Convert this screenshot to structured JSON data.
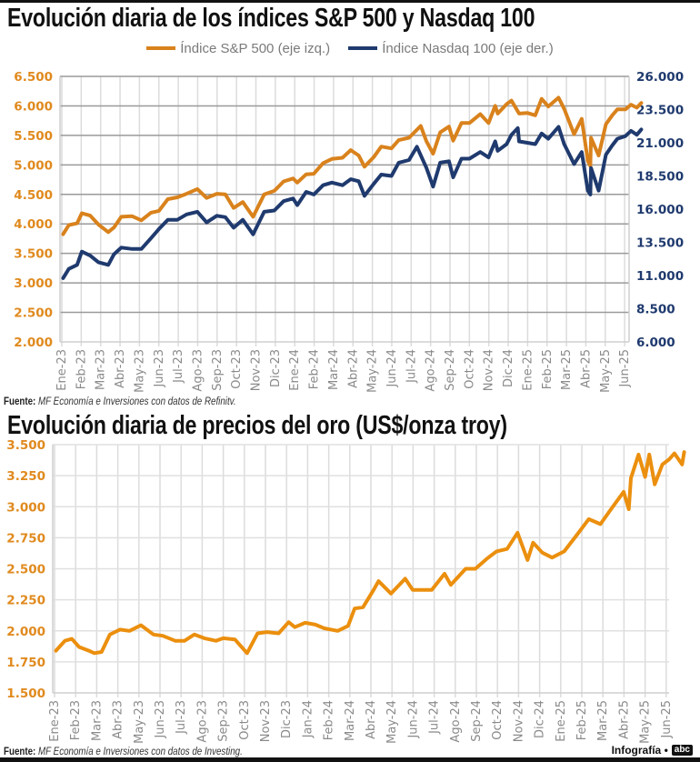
{
  "chart_data": [
    {
      "type": "line",
      "title": "Evolución diaria de los índices S&P 500 y Nasdaq 100",
      "legend_placement": "top-center",
      "grid": true,
      "y_left": {
        "range": [
          2000,
          6500
        ],
        "ticks": [
          "2.000",
          "2.500",
          "3.000",
          "3.500",
          "4.000",
          "4.500",
          "5.000",
          "5.500",
          "6.000",
          "6.500"
        ],
        "color": "#E08A1E"
      },
      "y_right": {
        "range": [
          6000,
          26000
        ],
        "ticks": [
          "6.000",
          "8.500",
          "11.000",
          "13.500",
          "16.000",
          "18.500",
          "21.000",
          "23.500",
          "26.000"
        ],
        "color": "#1F3A6E"
      },
      "x_ticks": [
        "Ene-23",
        "Feb-23",
        "Mar-23",
        "Abr-23",
        "May-23",
        "Jun-23",
        "Jul-23",
        "Ago-23",
        "Sep-23",
        "Oct-23",
        "Nov-23",
        "Dic-23",
        "Ene-24",
        "Feb-24",
        "Mar-24",
        "Abr-24",
        "May-24",
        "Jun-24",
        "Jul-24",
        "Ago-24",
        "Sep-24",
        "Oct-24",
        "Nov-24",
        "Dic-24",
        "Ene-25",
        "Feb-25",
        "Mar-25",
        "Abr-25",
        "May-25",
        "Jun-25"
      ],
      "series": [
        {
          "name": "Índice S&P 500 (eje izq.)",
          "axis": "left",
          "color": "#D9821C",
          "points": [
            [
              "2023-01-03",
              3825
            ],
            [
              "2023-01-12",
              3980
            ],
            [
              "2023-01-25",
              4010
            ],
            [
              "2023-02-02",
              4180
            ],
            [
              "2023-02-15",
              4140
            ],
            [
              "2023-02-28",
              3990
            ],
            [
              "2023-03-13",
              3860
            ],
            [
              "2023-03-22",
              3940
            ],
            [
              "2023-04-03",
              4120
            ],
            [
              "2023-04-20",
              4130
            ],
            [
              "2023-05-04",
              4060
            ],
            [
              "2023-05-19",
              4190
            ],
            [
              "2023-06-01",
              4220
            ],
            [
              "2023-06-15",
              4420
            ],
            [
              "2023-06-30",
              4450
            ],
            [
              "2023-07-14",
              4510
            ],
            [
              "2023-07-31",
              4590
            ],
            [
              "2023-08-15",
              4440
            ],
            [
              "2023-08-31",
              4510
            ],
            [
              "2023-09-14",
              4500
            ],
            [
              "2023-09-27",
              4270
            ],
            [
              "2023-10-11",
              4370
            ],
            [
              "2023-10-27",
              4120
            ],
            [
              "2023-11-14",
              4500
            ],
            [
              "2023-11-30",
              4560
            ],
            [
              "2023-12-14",
              4720
            ],
            [
              "2023-12-29",
              4770
            ],
            [
              "2024-01-05",
              4700
            ],
            [
              "2024-01-19",
              4840
            ],
            [
              "2024-01-31",
              4850
            ],
            [
              "2024-02-15",
              5030
            ],
            [
              "2024-02-29",
              5100
            ],
            [
              "2024-03-15",
              5120
            ],
            [
              "2024-03-28",
              5250
            ],
            [
              "2024-04-10",
              5160
            ],
            [
              "2024-04-19",
              4970
            ],
            [
              "2024-05-03",
              5130
            ],
            [
              "2024-05-15",
              5310
            ],
            [
              "2024-05-31",
              5280
            ],
            [
              "2024-06-12",
              5420
            ],
            [
              "2024-06-28",
              5460
            ],
            [
              "2024-07-16",
              5660
            ],
            [
              "2024-07-25",
              5400
            ],
            [
              "2024-08-05",
              5190
            ],
            [
              "2024-08-16",
              5550
            ],
            [
              "2024-08-30",
              5650
            ],
            [
              "2024-09-06",
              5410
            ],
            [
              "2024-09-19",
              5710
            ],
            [
              "2024-10-01",
              5710
            ],
            [
              "2024-10-18",
              5860
            ],
            [
              "2024-10-31",
              5710
            ],
            [
              "2024-11-11",
              6000
            ],
            [
              "2024-11-15",
              5870
            ],
            [
              "2024-11-29",
              6030
            ],
            [
              "2024-12-06",
              6090
            ],
            [
              "2024-12-18",
              5870
            ],
            [
              "2024-12-31",
              5880
            ],
            [
              "2025-01-13",
              5840
            ],
            [
              "2025-01-23",
              6120
            ],
            [
              "2025-02-03",
              5990
            ],
            [
              "2025-02-19",
              6140
            ],
            [
              "2025-02-28",
              5950
            ],
            [
              "2025-03-13",
              5520
            ],
            [
              "2025-03-25",
              5780
            ],
            [
              "2025-04-04",
              5070
            ],
            [
              "2025-04-08",
              4980
            ],
            [
              "2025-04-09",
              5460
            ],
            [
              "2025-04-21",
              5160
            ],
            [
              "2025-05-02",
              5690
            ],
            [
              "2025-05-12",
              5840
            ],
            [
              "2025-05-20",
              5940
            ],
            [
              "2025-06-02",
              5940
            ],
            [
              "2025-06-11",
              6020
            ],
            [
              "2025-06-20",
              5970
            ],
            [
              "2025-06-27",
              6050
            ]
          ]
        },
        {
          "name": "Índice Nasdaq 100 (eje der.)",
          "axis": "right",
          "color": "#1F3A6E",
          "points": [
            [
              "2023-01-03",
              10800
            ],
            [
              "2023-01-12",
              11500
            ],
            [
              "2023-01-25",
              11800
            ],
            [
              "2023-02-02",
              12800
            ],
            [
              "2023-02-15",
              12500
            ],
            [
              "2023-02-28",
              12000
            ],
            [
              "2023-03-13",
              11800
            ],
            [
              "2023-03-22",
              12600
            ],
            [
              "2023-04-03",
              13100
            ],
            [
              "2023-04-20",
              13000
            ],
            [
              "2023-05-04",
              13000
            ],
            [
              "2023-05-19",
              13800
            ],
            [
              "2023-06-01",
              14500
            ],
            [
              "2023-06-15",
              15200
            ],
            [
              "2023-06-30",
              15200
            ],
            [
              "2023-07-14",
              15600
            ],
            [
              "2023-07-31",
              15800
            ],
            [
              "2023-08-15",
              15000
            ],
            [
              "2023-08-31",
              15500
            ],
            [
              "2023-09-14",
              15400
            ],
            [
              "2023-09-27",
              14600
            ],
            [
              "2023-10-11",
              15200
            ],
            [
              "2023-10-27",
              14100
            ],
            [
              "2023-11-14",
              15800
            ],
            [
              "2023-11-30",
              15900
            ],
            [
              "2023-12-14",
              16600
            ],
            [
              "2023-12-29",
              16800
            ],
            [
              "2024-01-05",
              16300
            ],
            [
              "2024-01-19",
              17300
            ],
            [
              "2024-01-31",
              17100
            ],
            [
              "2024-02-15",
              17800
            ],
            [
              "2024-02-29",
              18000
            ],
            [
              "2024-03-15",
              17800
            ],
            [
              "2024-03-28",
              18250
            ],
            [
              "2024-04-10",
              18100
            ],
            [
              "2024-04-19",
              17000
            ],
            [
              "2024-05-03",
              17900
            ],
            [
              "2024-05-15",
              18600
            ],
            [
              "2024-05-31",
              18500
            ],
            [
              "2024-06-12",
              19500
            ],
            [
              "2024-06-28",
              19700
            ],
            [
              "2024-07-10",
              20700
            ],
            [
              "2024-07-25",
              19100
            ],
            [
              "2024-08-05",
              17700
            ],
            [
              "2024-08-16",
              19500
            ],
            [
              "2024-08-30",
              19600
            ],
            [
              "2024-09-06",
              18400
            ],
            [
              "2024-09-19",
              19800
            ],
            [
              "2024-10-01",
              19800
            ],
            [
              "2024-10-18",
              20300
            ],
            [
              "2024-10-31",
              19900
            ],
            [
              "2024-11-11",
              21100
            ],
            [
              "2024-11-15",
              20400
            ],
            [
              "2024-11-29",
              20900
            ],
            [
              "2024-12-06",
              21600
            ],
            [
              "2024-12-16",
              22100
            ],
            [
              "2024-12-18",
              21100
            ],
            [
              "2024-12-31",
              21000
            ],
            [
              "2025-01-13",
              20900
            ],
            [
              "2025-01-23",
              21700
            ],
            [
              "2025-02-03",
              21300
            ],
            [
              "2025-02-19",
              22200
            ],
            [
              "2025-02-28",
              20900
            ],
            [
              "2025-03-13",
              19400
            ],
            [
              "2025-03-25",
              20300
            ],
            [
              "2025-04-04",
              17400
            ],
            [
              "2025-04-08",
              17100
            ],
            [
              "2025-04-09",
              19100
            ],
            [
              "2025-04-21",
              17400
            ],
            [
              "2025-05-02",
              20100
            ],
            [
              "2025-05-12",
              20800
            ],
            [
              "2025-05-20",
              21300
            ],
            [
              "2025-06-02",
              21500
            ],
            [
              "2025-06-11",
              21900
            ],
            [
              "2025-06-20",
              21600
            ],
            [
              "2025-06-27",
              22000
            ]
          ]
        }
      ],
      "source_label": "Fuente:",
      "source_text": "MF Economía e Inversiones con datos de Refinitv."
    },
    {
      "type": "line",
      "title": "Evolución diaria de precios del oro (US$/onza troy)",
      "grid": true,
      "y_left": {
        "range": [
          1500,
          3500
        ],
        "ticks": [
          "1.500",
          "1.750",
          "2.000",
          "2.250",
          "2.500",
          "2.750",
          "3.000",
          "3.250",
          "3.500"
        ],
        "color": "#E08A1E"
      },
      "x_ticks": [
        "Ene-23",
        "Feb-23",
        "Mar-23",
        "Abr-23",
        "May-23",
        "Jun-23",
        "Jul-23",
        "Ago-23",
        "Sep-23",
        "Oct-23",
        "Nov-23",
        "Dic-23",
        "Jan-24",
        "Feb-24",
        "Mar-24",
        "Abr-24",
        "May-24",
        "Jun-24",
        "Jul-24",
        "Ago-24",
        "Sep-24",
        "Oct-24",
        "Nov-24",
        "Dic-24",
        "Ene-25",
        "Feb-25",
        "Mar-25",
        "Abr-25",
        "May-25",
        "Jun-25"
      ],
      "series": [
        {
          "axis": "left",
          "color": "#EB8F0E",
          "points": [
            [
              "2023-01-03",
              1840
            ],
            [
              "2023-01-16",
              1920
            ],
            [
              "2023-01-26",
              1935
            ],
            [
              "2023-02-06",
              1870
            ],
            [
              "2023-02-20",
              1840
            ],
            [
              "2023-02-28",
              1820
            ],
            [
              "2023-03-08",
              1830
            ],
            [
              "2023-03-20",
              1970
            ],
            [
              "2023-04-04",
              2010
            ],
            [
              "2023-04-18",
              2000
            ],
            [
              "2023-05-04",
              2045
            ],
            [
              "2023-05-22",
              1970
            ],
            [
              "2023-06-05",
              1960
            ],
            [
              "2023-06-23",
              1920
            ],
            [
              "2023-07-06",
              1920
            ],
            [
              "2023-07-20",
              1970
            ],
            [
              "2023-08-04",
              1940
            ],
            [
              "2023-08-21",
              1920
            ],
            [
              "2023-09-01",
              1940
            ],
            [
              "2023-09-18",
              1930
            ],
            [
              "2023-10-05",
              1820
            ],
            [
              "2023-10-20",
              1980
            ],
            [
              "2023-11-03",
              1990
            ],
            [
              "2023-11-20",
              1980
            ],
            [
              "2023-12-04",
              2070
            ],
            [
              "2023-12-13",
              2030
            ],
            [
              "2023-12-28",
              2065
            ],
            [
              "2024-01-12",
              2050
            ],
            [
              "2024-01-25",
              2020
            ],
            [
              "2024-02-14",
              2000
            ],
            [
              "2024-02-29",
              2040
            ],
            [
              "2024-03-08",
              2180
            ],
            [
              "2024-03-20",
              2190
            ],
            [
              "2024-04-05",
              2330
            ],
            [
              "2024-04-12",
              2400
            ],
            [
              "2024-04-30",
              2300
            ],
            [
              "2024-05-20",
              2420
            ],
            [
              "2024-05-31",
              2330
            ],
            [
              "2024-06-14",
              2330
            ],
            [
              "2024-06-28",
              2330
            ],
            [
              "2024-07-16",
              2460
            ],
            [
              "2024-07-25",
              2370
            ],
            [
              "2024-08-16",
              2500
            ],
            [
              "2024-08-30",
              2500
            ],
            [
              "2024-09-16",
              2580
            ],
            [
              "2024-09-30",
              2640
            ],
            [
              "2024-10-15",
              2660
            ],
            [
              "2024-10-30",
              2790
            ],
            [
              "2024-11-14",
              2570
            ],
            [
              "2024-11-22",
              2710
            ],
            [
              "2024-12-05",
              2630
            ],
            [
              "2024-12-19",
              2590
            ],
            [
              "2025-01-06",
              2640
            ],
            [
              "2025-01-24",
              2770
            ],
            [
              "2025-02-11",
              2900
            ],
            [
              "2025-02-28",
              2860
            ],
            [
              "2025-03-14",
              2990
            ],
            [
              "2025-03-31",
              3120
            ],
            [
              "2025-04-08",
              2980
            ],
            [
              "2025-04-11",
              3230
            ],
            [
              "2025-04-22",
              3420
            ],
            [
              "2025-05-01",
              3240
            ],
            [
              "2025-05-07",
              3420
            ],
            [
              "2025-05-15",
              3180
            ],
            [
              "2025-05-26",
              3340
            ],
            [
              "2025-06-05",
              3380
            ],
            [
              "2025-06-13",
              3430
            ],
            [
              "2025-06-24",
              3340
            ],
            [
              "2025-06-27",
              3440
            ]
          ]
        }
      ],
      "source_label": "Fuente:",
      "source_text": "MF Economía e Inversiones con datos de Investing."
    }
  ],
  "credit": {
    "label": "Infografía •",
    "logo": "abc"
  }
}
